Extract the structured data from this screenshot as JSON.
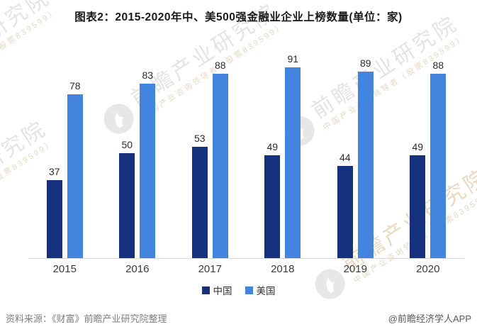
{
  "title": "图表2：2015-2020年中、美500强金融业企业上榜数量(单位：家)",
  "chart_data": {
    "type": "bar",
    "categories": [
      "2015",
      "2016",
      "2017",
      "2018",
      "2019",
      "2020"
    ],
    "series": [
      {
        "name": "中国",
        "color": "#15317D",
        "values": [
          37,
          50,
          53,
          49,
          44,
          49
        ]
      },
      {
        "name": "美国",
        "color": "#4284DE",
        "values": [
          78,
          83,
          88,
          91,
          89,
          88
        ]
      }
    ],
    "title": "图表2：2015-2020年中、美500强金融业企业上榜数量(单位：家)",
    "xlabel": "",
    "ylabel": "",
    "ylim": [
      0,
      100
    ],
    "grid": false,
    "legend_position": "bottom",
    "value_labels": true
  },
  "legend": {
    "items": [
      {
        "label": "中国",
        "color": "#15317D"
      },
      {
        "label": "美国",
        "color": "#4284DE"
      }
    ]
  },
  "footer": {
    "source": "资料来源：《财富》前瞻产业研究院整理",
    "credit": "@前瞻经济学人APP"
  },
  "watermark": {
    "text": "前瞻产业研究院",
    "subtext": "中国产业咨询领导者（股票839599）"
  },
  "colors": {
    "china_bar": "#15317D",
    "usa_bar": "#4284DE",
    "axis_line": "#d9d9d9",
    "title_text": "#1a1a1a",
    "watermark_gray": "#e4e4e4",
    "watermark_tan": "#e9dac0"
  }
}
